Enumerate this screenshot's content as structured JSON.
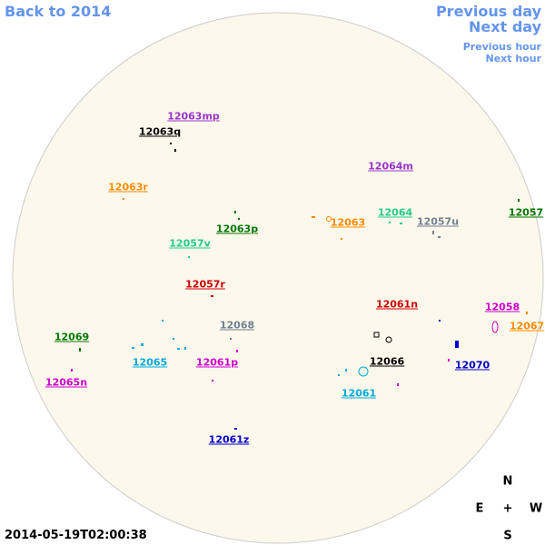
{
  "nav": {
    "back": "Back to 2014",
    "prev_day": "Previous day",
    "next_day": "Next day",
    "prev_hour": "Previous hour",
    "next_hour": "Next hour"
  },
  "regions": [
    {
      "label": "12063mp",
      "color": "#9933cc"
    },
    {
      "label": "12063q",
      "color": "#000000"
    },
    {
      "label": "12064m",
      "color": "#9933cc"
    },
    {
      "label": "12063r",
      "color": "#ff8c00"
    },
    {
      "label": "12064",
      "color": "#22cc88"
    },
    {
      "label": "12057",
      "color": "#007700"
    },
    {
      "label": "12063",
      "color": "#ff8c00"
    },
    {
      "label": "12057u",
      "color": "#708090"
    },
    {
      "label": "12063p",
      "color": "#007700"
    },
    {
      "label": "12057v",
      "color": "#22cc88"
    },
    {
      "label": "12057r",
      "color": "#cc0000"
    },
    {
      "label": "12061n",
      "color": "#cc0000"
    },
    {
      "label": "12058",
      "color": "#cc00cc"
    },
    {
      "label": "12067",
      "color": "#ff8c00"
    },
    {
      "label": "12068",
      "color": "#708090"
    },
    {
      "label": "12069",
      "color": "#007700"
    },
    {
      "label": "12065",
      "color": "#00aadd"
    },
    {
      "label": "12061p",
      "color": "#cc00cc"
    },
    {
      "label": "12066",
      "color": "#000000"
    },
    {
      "label": "12070",
      "color": "#0000cc"
    },
    {
      "label": "12065n",
      "color": "#cc00cc"
    },
    {
      "label": "12061",
      "color": "#00aadd"
    },
    {
      "label": "12061z",
      "color": "#0000cc"
    }
  ],
  "timestamp": "2014-05-19T02:00:38",
  "compass": {
    "n": "N",
    "e": "E",
    "center": "+",
    "w": "W",
    "s": "S"
  }
}
